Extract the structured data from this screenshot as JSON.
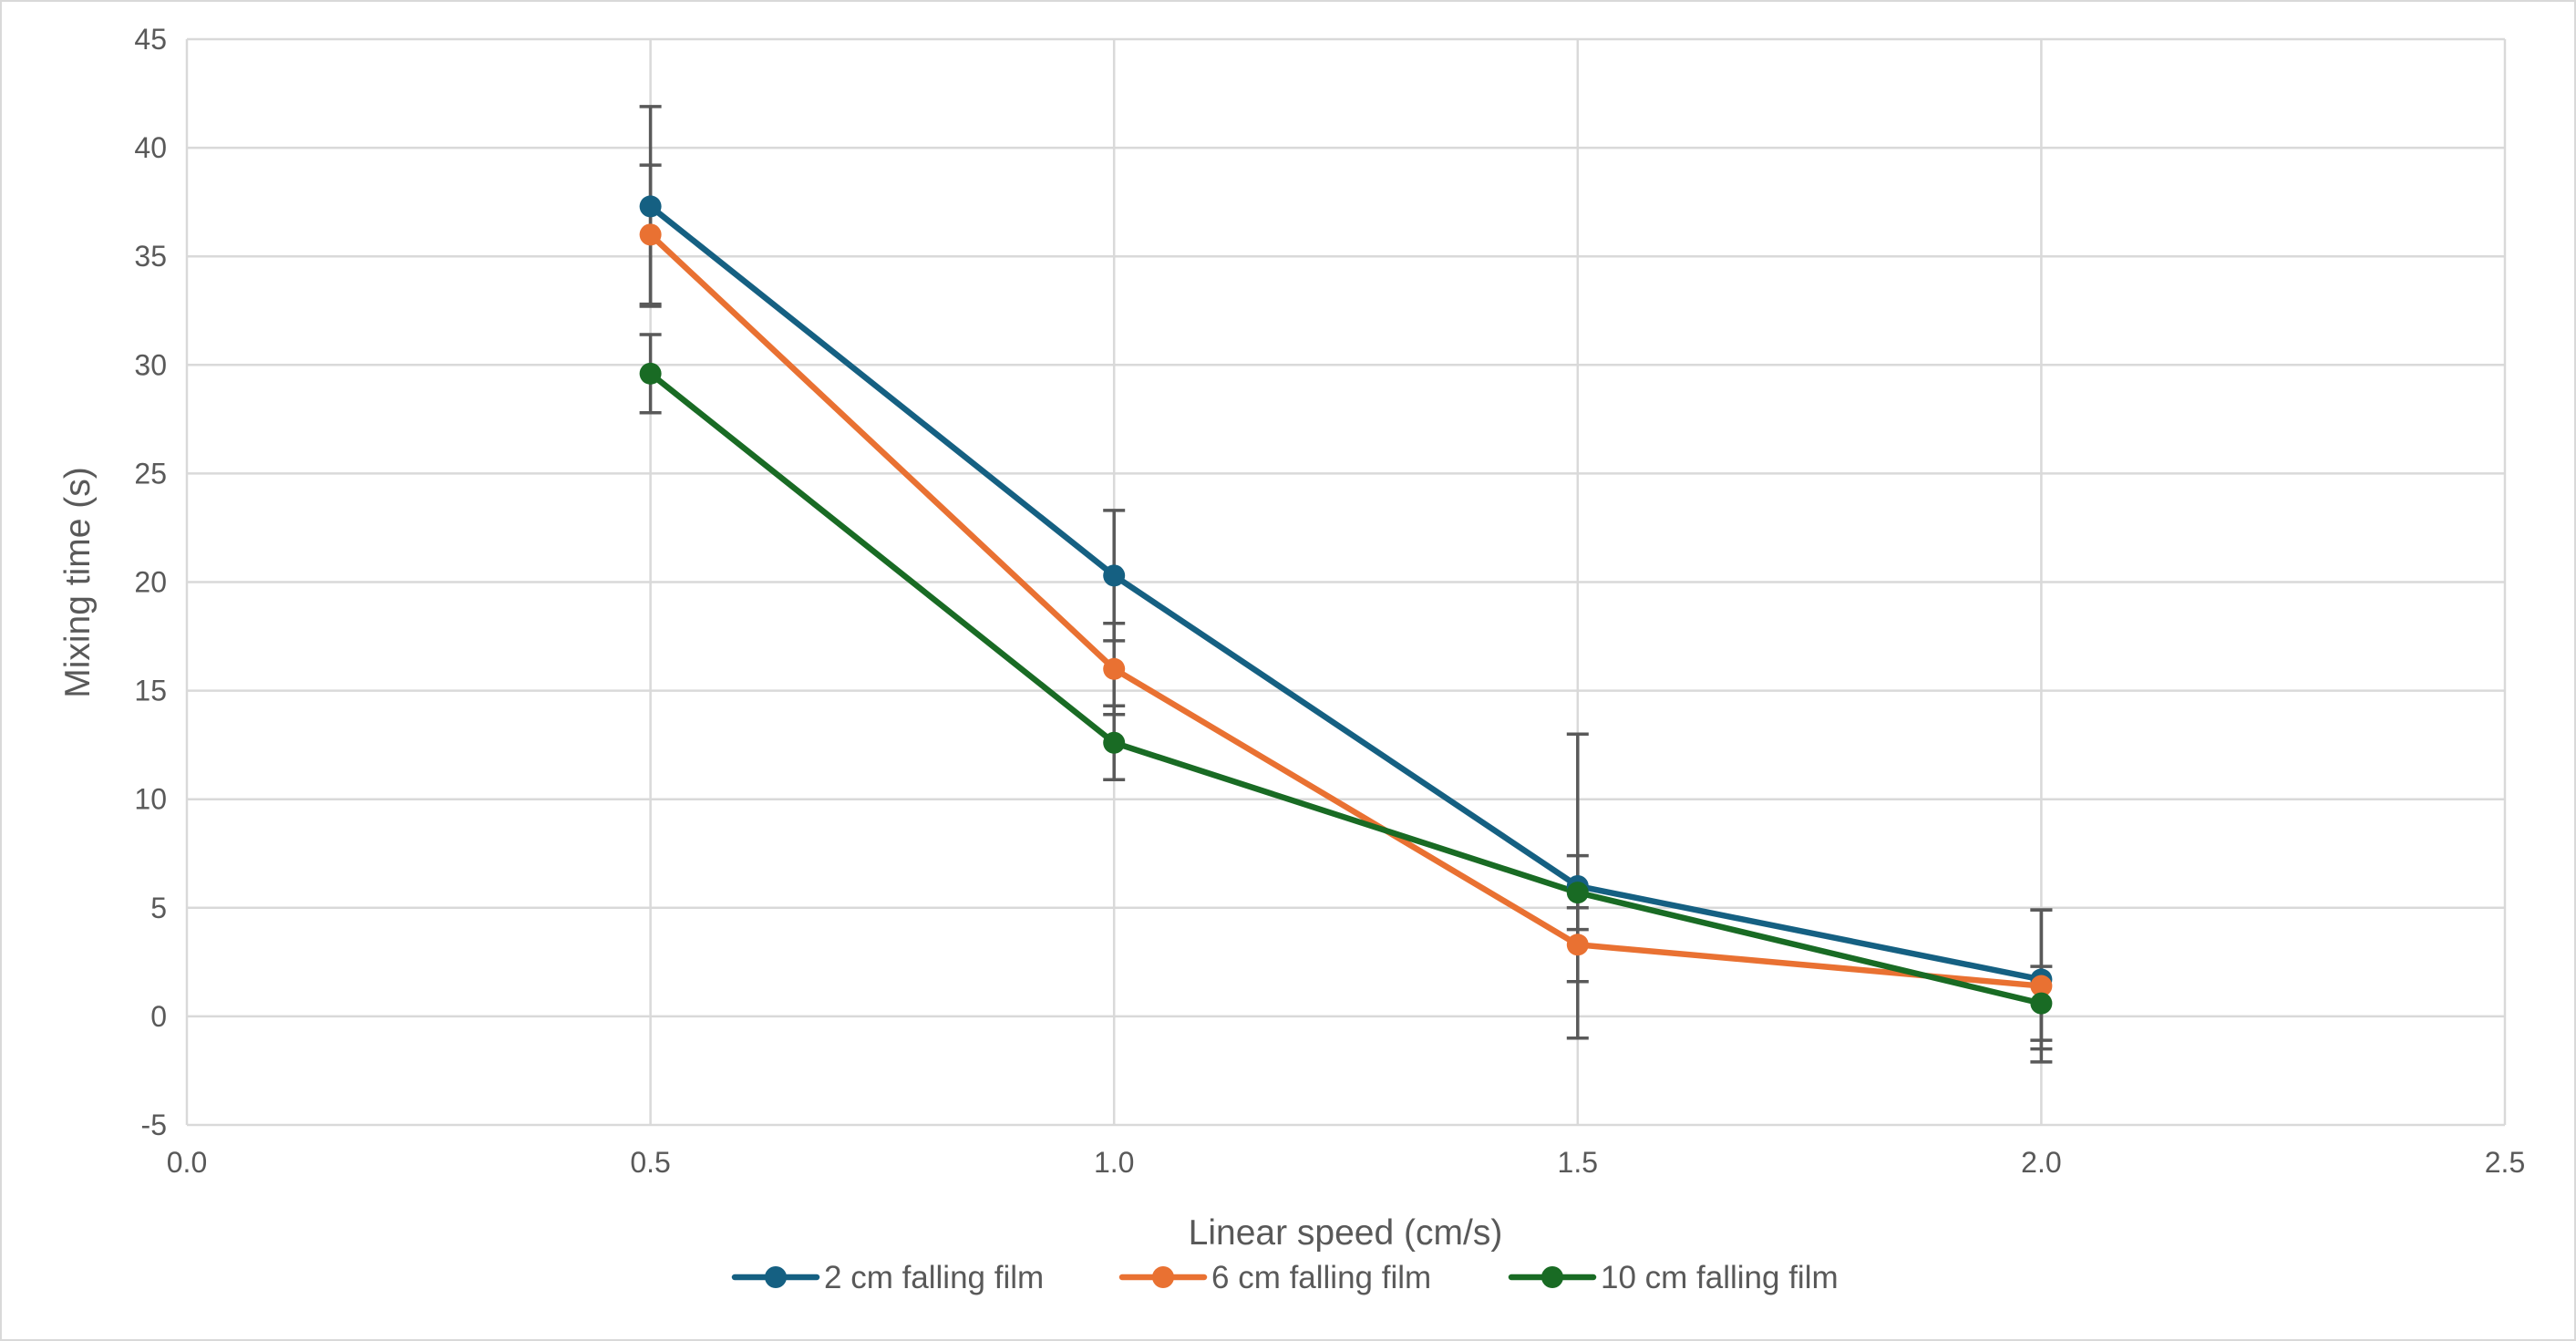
{
  "chart_data": {
    "type": "line",
    "title": "",
    "xlabel": "Linear speed (cm/s)",
    "ylabel": "Mixing time (s)",
    "xlim": [
      0,
      2.5
    ],
    "ylim": [
      -5,
      45
    ],
    "x_ticks": [
      "0.0",
      "0.5",
      "1.0",
      "1.5",
      "2.0",
      "2.5"
    ],
    "y_ticks": [
      "-5",
      "0",
      "5",
      "10",
      "15",
      "20",
      "25",
      "30",
      "35",
      "40",
      "45"
    ],
    "grid": true,
    "legend_position": "bottom",
    "x": [
      0.5,
      1.0,
      1.5,
      2.0
    ],
    "series": [
      {
        "name": "2 cm falling film",
        "color": "#156082",
        "values": [
          37.3,
          20.3,
          6.0,
          1.7
        ],
        "error": [
          4.6,
          3.0,
          7.0,
          3.2
        ]
      },
      {
        "name": "6 cm falling film",
        "color": "#E97132",
        "values": [
          36.0,
          16.0,
          3.3,
          1.4
        ],
        "error": [
          3.2,
          2.1,
          1.7,
          3.5
        ]
      },
      {
        "name": "10 cm falling film",
        "color": "#196B24",
        "values": [
          29.6,
          12.6,
          5.7,
          0.6
        ],
        "error": [
          1.8,
          1.7,
          1.7,
          1.7
        ]
      }
    ]
  }
}
